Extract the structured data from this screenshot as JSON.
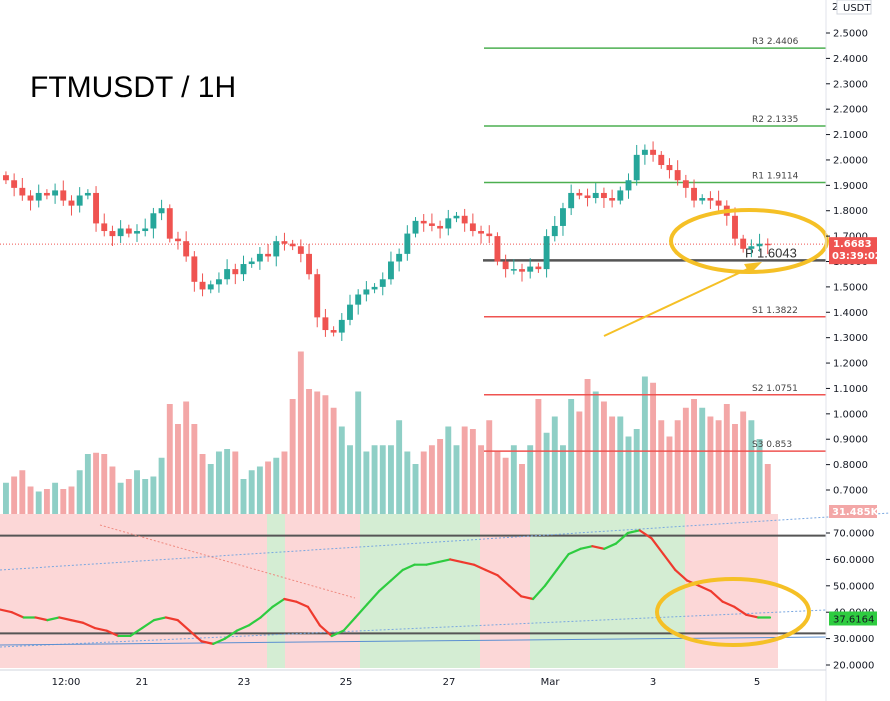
{
  "chart_data": {
    "type": "candlestick",
    "title": "FTMUSDT / 1H",
    "currency_badge": "USDT",
    "y_axis_ticks": [
      "2.5000",
      "2.4000",
      "2.3000",
      "2.2000",
      "2.1000",
      "2.0000",
      "1.9000",
      "1.8000",
      "1.7000",
      "1.6000",
      "1.5000",
      "1.4000",
      "1.3000",
      "1.2000",
      "1.1000",
      "1.0000",
      "0.9000",
      "0.8000",
      "0.7000"
    ],
    "y_axis_top_partial": "2",
    "ylim": [
      0.62,
      2.58
    ],
    "x_axis_ticks": [
      "12:00",
      "21",
      "23",
      "25",
      "27",
      "Mar",
      "3",
      "5"
    ],
    "last_price": {
      "value": 1.6683,
      "label": "1.6683",
      "countdown": "03:39:02"
    },
    "price_series": [
      1.92,
      1.89,
      1.86,
      1.84,
      1.87,
      1.86,
      1.88,
      1.84,
      1.82,
      1.86,
      1.87,
      1.75,
      1.72,
      1.7,
      1.73,
      1.71,
      1.72,
      1.73,
      1.79,
      1.81,
      1.69,
      1.68,
      1.62,
      1.52,
      1.49,
      1.51,
      1.53,
      1.57,
      1.55,
      1.59,
      1.6,
      1.63,
      1.62,
      1.68,
      1.67,
      1.66,
      1.63,
      1.55,
      1.38,
      1.33,
      1.32,
      1.37,
      1.43,
      1.47,
      1.49,
      1.5,
      1.53,
      1.6,
      1.63,
      1.71,
      1.76,
      1.75,
      1.74,
      1.73,
      1.77,
      1.78,
      1.75,
      1.72,
      1.71,
      1.7,
      1.6,
      1.57,
      1.57,
      1.56,
      1.58,
      1.57,
      1.7,
      1.74,
      1.81,
      1.87,
      1.86,
      1.85,
      1.87,
      1.85,
      1.84,
      1.88,
      1.92,
      2.02,
      2.04,
      2.02,
      1.98,
      1.96,
      1.92,
      1.89,
      1.84,
      1.85,
      1.84,
      1.82,
      1.78,
      1.69,
      1.65,
      1.66,
      1.67,
      1.6683
    ],
    "volume_series": [
      0.25,
      0.3,
      0.35,
      0.22,
      0.18,
      0.2,
      0.25,
      0.2,
      0.22,
      0.35,
      0.48,
      0.49,
      0.48,
      0.38,
      0.25,
      0.28,
      0.35,
      0.28,
      0.3,
      0.45,
      0.88,
      0.72,
      0.9,
      0.72,
      0.48,
      0.4,
      0.5,
      0.52,
      0.5,
      0.28,
      0.35,
      0.38,
      0.42,
      0.45,
      0.5,
      0.92,
      1.3,
      1.0,
      0.98,
      0.95,
      0.85,
      0.7,
      0.55,
      0.98,
      0.5,
      0.55,
      0.55,
      0.55,
      0.75,
      0.5,
      0.4,
      0.5,
      0.55,
      0.6,
      0.7,
      0.55,
      0.7,
      0.68,
      0.55,
      0.75,
      0.5,
      0.45,
      0.55,
      0.4,
      0.55,
      0.92,
      0.65,
      0.78,
      0.55,
      0.92,
      0.82,
      1.08,
      0.98,
      0.9,
      0.78,
      0.78,
      0.62,
      0.68,
      1.1,
      1.05,
      0.75,
      0.62,
      0.75,
      0.85,
      0.92,
      0.85,
      0.78,
      0.75,
      0.88,
      0.72,
      0.82,
      0.75,
      0.6,
      0.4
    ],
    "volume_readout": "31.485K",
    "pivots": [
      {
        "label": "R3 2.4406",
        "value": 2.4406,
        "color": "#4caf50"
      },
      {
        "label": "R2 2.1335",
        "value": 2.1335,
        "color": "#4caf50"
      },
      {
        "label": "R1 1.9114",
        "value": 1.9114,
        "color": "#4caf50"
      },
      {
        "label": "P 1.6043",
        "value": 1.6043,
        "color": "#555555"
      },
      {
        "label": "S1 1.3822",
        "value": 1.3822,
        "color": "#ef5350"
      },
      {
        "label": "S2 1.0751",
        "value": 1.0751,
        "color": "#ef5350"
      },
      {
        "label": "S3 0.853",
        "value": 0.853,
        "color": "#ef5350"
      }
    ],
    "pivot_big_label": "P 1.6043",
    "oscillator": {
      "ticks": [
        "70.0000",
        "60.0000",
        "50.0000",
        "40.0000",
        "30.0000",
        "20.0000"
      ],
      "ylim": [
        16,
        76
      ],
      "levels": [
        68,
        32
      ],
      "last_value": "37.6164",
      "series": [
        41,
        40,
        38,
        38,
        37,
        38,
        37,
        36,
        34,
        33,
        31,
        31,
        34,
        37,
        38,
        37,
        33,
        29,
        28,
        30,
        33,
        35,
        38,
        42,
        45,
        44,
        42,
        35,
        31,
        33,
        38,
        43,
        48,
        52,
        56,
        58,
        58,
        59,
        60,
        59,
        58,
        56,
        54,
        50,
        46,
        45,
        50,
        56,
        62,
        64,
        65,
        64,
        66,
        70,
        71,
        68,
        62,
        56,
        52,
        50,
        48,
        44,
        42,
        39,
        38,
        38
      ]
    },
    "colors": {
      "up": "#26a69a",
      "down": "#ef5350",
      "annotation": "#f5c026",
      "bull_zone": "#d4edd3",
      "bear_zone": "#fcd7d7",
      "oscillator_up": "#2ecc40",
      "oscillator_down": "#ef3a2e",
      "last_price_tag": "#ef5350",
      "osc_tag": "#2ecc40"
    }
  }
}
